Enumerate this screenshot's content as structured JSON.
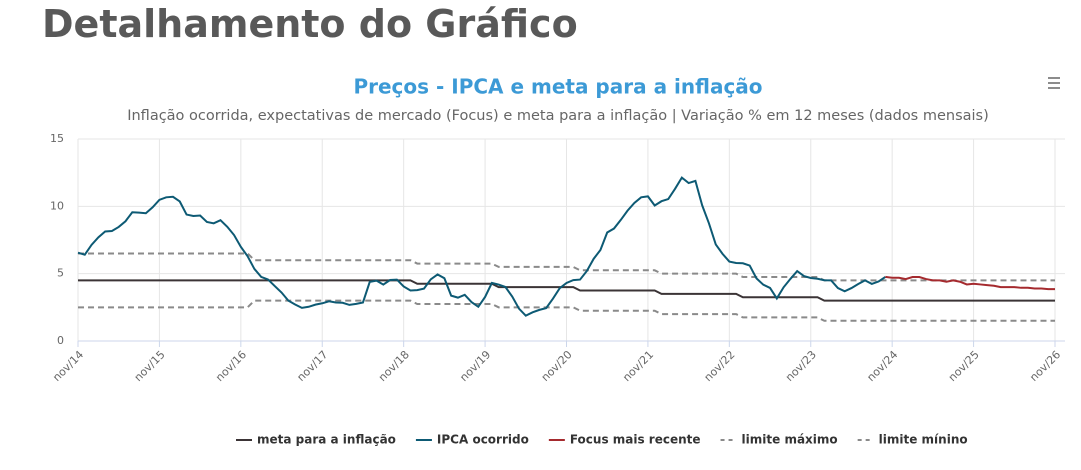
{
  "header": {
    "title": "Detalhamento do Gráfico"
  },
  "chart_data": {
    "type": "line",
    "title": "Preços - IPCA e meta para a inflação",
    "subtitle": "Inflação ocorrida, expectativas de mercado (Focus) e meta para a inflação | Variação % em 12 meses (dados mensais)",
    "categories": [
      "nov/14",
      null,
      null,
      null,
      null,
      null,
      null,
      null,
      null,
      null,
      null,
      null,
      "nov/15",
      null,
      null,
      null,
      null,
      null,
      null,
      null,
      null,
      null,
      null,
      null,
      "nov/16",
      null,
      null,
      null,
      null,
      null,
      null,
      null,
      null,
      null,
      null,
      null,
      "nov/17",
      null,
      null,
      null,
      null,
      null,
      null,
      null,
      null,
      null,
      null,
      null,
      "nov/18",
      null,
      null,
      null,
      null,
      null,
      null,
      null,
      null,
      null,
      null,
      null,
      "nov/19",
      null,
      null,
      null,
      null,
      null,
      null,
      null,
      null,
      null,
      null,
      null,
      "nov/20",
      null,
      null,
      null,
      null,
      null,
      null,
      null,
      null,
      null,
      null,
      null,
      "nov/21",
      null,
      null,
      null,
      null,
      null,
      null,
      null,
      null,
      null,
      null,
      null,
      "nov/22",
      null,
      null,
      null,
      null,
      null,
      null,
      null,
      null,
      null,
      null,
      null,
      "nov/23",
      null,
      null,
      null,
      null,
      null,
      null,
      null,
      null,
      null,
      null,
      null,
      "nov/24",
      null,
      null,
      null,
      null,
      null,
      null,
      null,
      null,
      null,
      null,
      null,
      "nov/25",
      null,
      null,
      null,
      null,
      null,
      null,
      null,
      null,
      null,
      null,
      null,
      "nov/26"
    ],
    "ylim": [
      0,
      15
    ],
    "yticks": [
      0,
      5,
      10,
      15
    ],
    "grid": true,
    "series": [
      {
        "name": "meta para a inflação",
        "color": "#3b3436",
        "dashed": false,
        "values": [
          4.5,
          4.5,
          4.5,
          4.5,
          4.5,
          4.5,
          4.5,
          4.5,
          4.5,
          4.5,
          4.5,
          4.5,
          4.5,
          4.5,
          4.5,
          4.5,
          4.5,
          4.5,
          4.5,
          4.5,
          4.5,
          4.5,
          4.5,
          4.5,
          4.5,
          4.5,
          4.5,
          4.5,
          4.5,
          4.5,
          4.5,
          4.5,
          4.5,
          4.5,
          4.5,
          4.5,
          4.5,
          4.5,
          4.5,
          4.5,
          4.5,
          4.5,
          4.5,
          4.5,
          4.5,
          4.5,
          4.5,
          4.5,
          4.5,
          4.5,
          4.25,
          4.25,
          4.25,
          4.25,
          4.25,
          4.25,
          4.25,
          4.25,
          4.25,
          4.25,
          4.25,
          4.25,
          4,
          4,
          4,
          4,
          4,
          4,
          4,
          4,
          4,
          4,
          4,
          4,
          3.75,
          3.75,
          3.75,
          3.75,
          3.75,
          3.75,
          3.75,
          3.75,
          3.75,
          3.75,
          3.75,
          3.75,
          3.5,
          3.5,
          3.5,
          3.5,
          3.5,
          3.5,
          3.5,
          3.5,
          3.5,
          3.5,
          3.5,
          3.5,
          3.25,
          3.25,
          3.25,
          3.25,
          3.25,
          3.25,
          3.25,
          3.25,
          3.25,
          3.25,
          3.25,
          3.25,
          3,
          3,
          3,
          3,
          3,
          3,
          3,
          3,
          3,
          3,
          3,
          3,
          3,
          3,
          3,
          3,
          3,
          3,
          3,
          3,
          3,
          3,
          3,
          3,
          3,
          3,
          3,
          3,
          3,
          3,
          3,
          3,
          3,
          3,
          3
        ]
      },
      {
        "name": "IPCA ocorrido",
        "color": "#0d5a74",
        "dashed": false,
        "values": [
          6.56,
          6.41,
          7.14,
          7.7,
          8.13,
          8.17,
          8.47,
          8.89,
          9.56,
          9.53,
          9.49,
          9.93,
          10.48,
          10.67,
          10.71,
          10.36,
          9.39,
          9.28,
          9.32,
          8.84,
          8.74,
          8.97,
          8.48,
          7.87,
          6.99,
          6.29,
          5.35,
          4.76,
          4.57,
          4.08,
          3.6,
          3.0,
          2.71,
          2.46,
          2.54,
          2.7,
          2.8,
          2.95,
          2.86,
          2.84,
          2.68,
          2.76,
          2.86,
          4.39,
          4.48,
          4.19,
          4.53,
          4.56,
          4.05,
          3.75,
          3.78,
          3.89,
          4.58,
          4.94,
          4.66,
          3.37,
          3.22,
          3.43,
          2.89,
          2.54,
          3.27,
          4.31,
          4.19,
          4.01,
          3.3,
          2.4,
          1.88,
          2.13,
          2.31,
          2.44,
          3.14,
          3.92,
          4.31,
          4.52,
          4.56,
          5.2,
          6.1,
          6.76,
          8.06,
          8.35,
          8.99,
          9.68,
          10.25,
          10.67,
          10.74,
          10.06,
          10.38,
          10.54,
          11.3,
          12.13,
          11.73,
          11.89,
          10.07,
          8.73,
          7.17,
          6.47,
          5.9,
          5.79,
          5.77,
          5.6,
          4.65,
          4.18,
          3.94,
          3.16,
          3.99,
          4.61,
          5.19,
          4.82,
          4.68,
          4.62,
          4.51,
          4.5,
          3.93,
          3.69,
          3.93,
          4.23,
          4.5,
          4.24,
          4.42,
          4.76,
          null,
          null,
          null,
          null,
          null,
          null,
          null,
          null,
          null,
          null,
          null,
          null,
          null,
          null,
          null,
          null,
          null,
          null,
          null,
          null,
          null,
          null,
          null,
          null,
          null
        ]
      },
      {
        "name": "Focus mais recente",
        "color": "#a52a2e",
        "dashed": false,
        "values": [
          null,
          null,
          null,
          null,
          null,
          null,
          null,
          null,
          null,
          null,
          null,
          null,
          null,
          null,
          null,
          null,
          null,
          null,
          null,
          null,
          null,
          null,
          null,
          null,
          null,
          null,
          null,
          null,
          null,
          null,
          null,
          null,
          null,
          null,
          null,
          null,
          null,
          null,
          null,
          null,
          null,
          null,
          null,
          null,
          null,
          null,
          null,
          null,
          null,
          null,
          null,
          null,
          null,
          null,
          null,
          null,
          null,
          null,
          null,
          null,
          null,
          null,
          null,
          null,
          null,
          null,
          null,
          null,
          null,
          null,
          null,
          null,
          null,
          null,
          null,
          null,
          null,
          null,
          null,
          null,
          null,
          null,
          null,
          null,
          null,
          null,
          null,
          null,
          null,
          null,
          null,
          null,
          null,
          null,
          null,
          null,
          null,
          null,
          null,
          null,
          null,
          null,
          null,
          null,
          null,
          null,
          null,
          null,
          null,
          null,
          null,
          null,
          null,
          null,
          null,
          null,
          null,
          null,
          null,
          4.76,
          4.7,
          4.7,
          4.6,
          4.75,
          4.75,
          4.6,
          4.5,
          4.5,
          4.4,
          4.5,
          4.4,
          4.2,
          4.25,
          4.2,
          4.15,
          4.1,
          4.0,
          4.0,
          4.0,
          3.95,
          3.95,
          3.9,
          3.9,
          3.85,
          3.85
        ]
      },
      {
        "name": "limite máximo",
        "color": "#8a8a8a",
        "dashed": true,
        "values": [
          6.5,
          6.5,
          6.5,
          6.5,
          6.5,
          6.5,
          6.5,
          6.5,
          6.5,
          6.5,
          6.5,
          6.5,
          6.5,
          6.5,
          6.5,
          6.5,
          6.5,
          6.5,
          6.5,
          6.5,
          6.5,
          6.5,
          6.5,
          6.5,
          6.5,
          6.5,
          6,
          6,
          6,
          6,
          6,
          6,
          6,
          6,
          6,
          6,
          6,
          6,
          6,
          6,
          6,
          6,
          6,
          6,
          6,
          6,
          6,
          6,
          6,
          6,
          5.75,
          5.75,
          5.75,
          5.75,
          5.75,
          5.75,
          5.75,
          5.75,
          5.75,
          5.75,
          5.75,
          5.75,
          5.5,
          5.5,
          5.5,
          5.5,
          5.5,
          5.5,
          5.5,
          5.5,
          5.5,
          5.5,
          5.5,
          5.5,
          5.25,
          5.25,
          5.25,
          5.25,
          5.25,
          5.25,
          5.25,
          5.25,
          5.25,
          5.25,
          5.25,
          5.25,
          5,
          5,
          5,
          5,
          5,
          5,
          5,
          5,
          5,
          5,
          5,
          5,
          4.75,
          4.75,
          4.75,
          4.75,
          4.75,
          4.75,
          4.75,
          4.75,
          4.75,
          4.75,
          4.75,
          4.75,
          4.5,
          4.5,
          4.5,
          4.5,
          4.5,
          4.5,
          4.5,
          4.5,
          4.5,
          4.5,
          4.5,
          4.5,
          4.5,
          4.5,
          4.5,
          4.5,
          4.5,
          4.5,
          4.5,
          4.5,
          4.5,
          4.5,
          4.5,
          4.5,
          4.5,
          4.5,
          4.5,
          4.5,
          4.5,
          4.5,
          4.5,
          4.5,
          4.5,
          4.5,
          4.5
        ]
      },
      {
        "name": "limite mínino",
        "color": "#8a8a8a",
        "dashed": true,
        "values": [
          2.5,
          2.5,
          2.5,
          2.5,
          2.5,
          2.5,
          2.5,
          2.5,
          2.5,
          2.5,
          2.5,
          2.5,
          2.5,
          2.5,
          2.5,
          2.5,
          2.5,
          2.5,
          2.5,
          2.5,
          2.5,
          2.5,
          2.5,
          2.5,
          2.5,
          2.5,
          3,
          3,
          3,
          3,
          3,
          3,
          3,
          3,
          3,
          3,
          3,
          3,
          3,
          3,
          3,
          3,
          3,
          3,
          3,
          3,
          3,
          3,
          3,
          3,
          2.75,
          2.75,
          2.75,
          2.75,
          2.75,
          2.75,
          2.75,
          2.75,
          2.75,
          2.75,
          2.75,
          2.75,
          2.5,
          2.5,
          2.5,
          2.5,
          2.5,
          2.5,
          2.5,
          2.5,
          2.5,
          2.5,
          2.5,
          2.5,
          2.25,
          2.25,
          2.25,
          2.25,
          2.25,
          2.25,
          2.25,
          2.25,
          2.25,
          2.25,
          2.25,
          2.25,
          2,
          2,
          2,
          2,
          2,
          2,
          2,
          2,
          2,
          2,
          2,
          2,
          1.75,
          1.75,
          1.75,
          1.75,
          1.75,
          1.75,
          1.75,
          1.75,
          1.75,
          1.75,
          1.75,
          1.75,
          1.5,
          1.5,
          1.5,
          1.5,
          1.5,
          1.5,
          1.5,
          1.5,
          1.5,
          1.5,
          1.5,
          1.5,
          1.5,
          1.5,
          1.5,
          1.5,
          1.5,
          1.5,
          1.5,
          1.5,
          1.5,
          1.5,
          1.5,
          1.5,
          1.5,
          1.5,
          1.5,
          1.5,
          1.5,
          1.5,
          1.5,
          1.5,
          1.5,
          1.5,
          1.5
        ]
      }
    ]
  }
}
